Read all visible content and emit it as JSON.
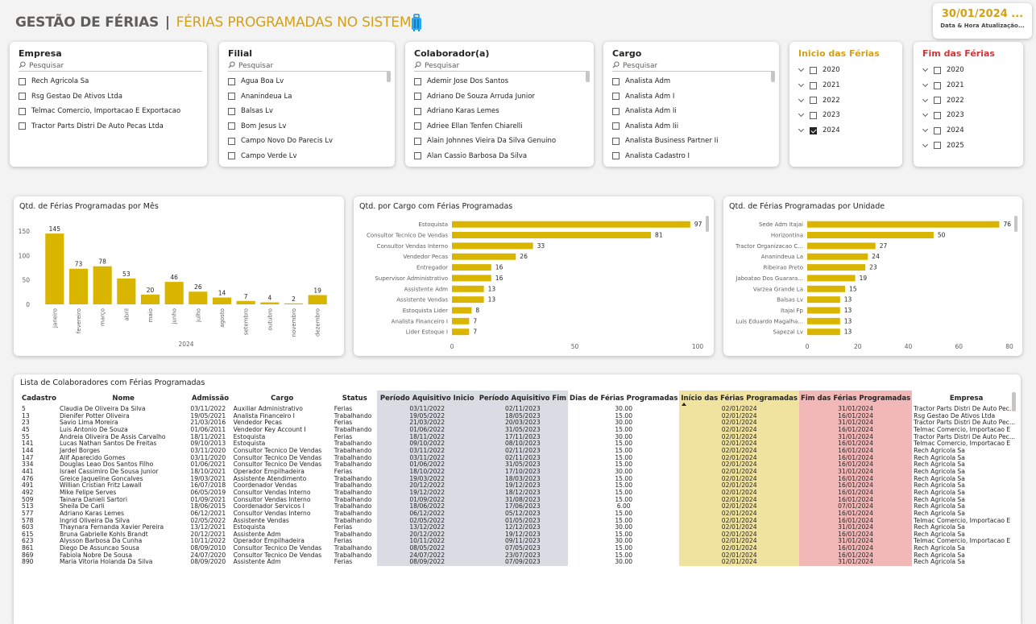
{
  "header": {
    "title_main": "GESTÃO DE FÉRIAS",
    "title_sep": "|",
    "title_sub": "FÉRIAS PROGRAMADAS NO SISTEMA",
    "date_value": "30/01/2024 ...",
    "date_label": "Data & Hora Atualização..."
  },
  "colors": {
    "accent": "#d4a017",
    "red_title": "#d13438",
    "grey_col": "#d9dde3",
    "yellow_col": "#f0e3a0",
    "red_col": "#f2b8b8"
  },
  "icons": {
    "title": "suitcase-icon",
    "search": "search-icon",
    "year_expand": "chevron-down-icon"
  },
  "slicers": {
    "empresa": {
      "title": "Empresa",
      "search": "Pesquisar",
      "items": [
        "Rech Agricola Sa",
        "Rsg Gestao De Ativos Ltda",
        "Telmac Comercio, Importacao E Exportacao",
        "Tractor Parts Distri De Auto Pecas Ltda"
      ]
    },
    "filial": {
      "title": "Filial",
      "search": "Pesquisar",
      "items": [
        "Agua Boa Lv",
        "Ananindeua La",
        "Balsas Lv",
        "Bom Jesus Lv",
        "Campo Novo Do Parecis Lv",
        "Campo Verde Lv"
      ]
    },
    "colaborador": {
      "title": "Colaborador(a)",
      "search": "Pesquisar",
      "items": [
        "Ademir Jose Dos Santos",
        "Adriano De Souza Arruda Junior",
        "Adriano Karas Lemes",
        "Adriee Ellan Tenfen Chiarelli",
        "Alain Johnnes Vieira Da Silva Genuino",
        "Alan Cassio Barbosa Da Silva"
      ]
    },
    "cargo": {
      "title": "Cargo",
      "search": "Pesquisar",
      "items": [
        "Analista Adm",
        "Analista Adm I",
        "Analista Adm Ii",
        "Analista Adm Iii",
        "Analista Business Partner Ii",
        "Analista Cadastro I"
      ]
    },
    "inicio": {
      "title": "Inicio das Férias",
      "items": [
        {
          "label": "2020",
          "checked": false
        },
        {
          "label": "2021",
          "checked": false
        },
        {
          "label": "2022",
          "checked": false
        },
        {
          "label": "2023",
          "checked": false
        },
        {
          "label": "2024",
          "checked": true
        }
      ]
    },
    "fim": {
      "title": "Fim das Férias",
      "items": [
        {
          "label": "2020",
          "checked": false
        },
        {
          "label": "2021",
          "checked": false
        },
        {
          "label": "2022",
          "checked": false
        },
        {
          "label": "2023",
          "checked": false
        },
        {
          "label": "2024",
          "checked": false
        },
        {
          "label": "2025",
          "checked": false
        }
      ]
    }
  },
  "chart_data": [
    {
      "type": "bar",
      "title": "Qtd. de Férias Programadas por Mês",
      "x_group_label": "2024",
      "categories": [
        "janeiro",
        "fevereiro",
        "março",
        "abril",
        "maio",
        "junho",
        "julho",
        "agosto",
        "setembro",
        "outubro",
        "novembro",
        "dezembro"
      ],
      "values": [
        145,
        73,
        78,
        53,
        20,
        46,
        26,
        14,
        7,
        4,
        2,
        19
      ],
      "y_ticks": [
        0,
        50,
        100,
        150
      ],
      "ylim": [
        0,
        160
      ],
      "color": "#dab500"
    },
    {
      "type": "bar",
      "orientation": "horizontal",
      "title": "Qtd. por Cargo com Férias Programadas",
      "categories": [
        "Estoquista",
        "Consultor Tecnico De Vendas",
        "Consultor Vendas Interno",
        "Vendedor Pecas",
        "Entregador",
        "Supervisor Administrativo",
        "Assistente Adm",
        "Assistente Vendas",
        "Estoquista Lider",
        "Analista Financeiro I",
        "Lider Estoque I"
      ],
      "values": [
        97,
        81,
        33,
        26,
        16,
        16,
        13,
        13,
        8,
        7,
        7
      ],
      "x_ticks": [
        0,
        50,
        100
      ],
      "xlim": [
        0,
        100
      ],
      "color": "#dab500"
    },
    {
      "type": "bar",
      "orientation": "horizontal",
      "title": "Qtd. de Férias Programadas por Unidade",
      "categories": [
        "Sede Adm Itajai",
        "Horizontina",
        "Tractor Organizacao C...",
        "Ananindeua La",
        "Ribeirao Preto",
        "Jaboatao Dos Guarara...",
        "Varzea Grande La",
        "Balsas Lv",
        "Itajai Fp",
        "Luis Eduardo Magalha...",
        "Sapezal Lv"
      ],
      "values": [
        76,
        50,
        27,
        24,
        23,
        19,
        15,
        13,
        13,
        13,
        13
      ],
      "x_ticks": [
        0,
        20,
        40,
        60,
        80
      ],
      "xlim": [
        0,
        80
      ],
      "color": "#dab500"
    }
  ],
  "table": {
    "title": "Lista de Colaboradores com Férias Programadas",
    "columns": [
      "Cadastro",
      "Nome",
      "Admissão",
      "Cargo",
      "Status",
      "Período Aquisitivo Inicio",
      "Período Aquisitivo Fim",
      "Dias de Férias Programadas",
      "Início das Férias Programadas",
      "Fim das Férias Programadas",
      "Empresa"
    ],
    "rows": [
      [
        "5",
        "Claudia De Oliveira Da Silva",
        "03/11/2022",
        "Auxiliar Administrativo",
        "Ferias",
        "03/11/2022",
        "02/11/2023",
        "30.00",
        "02/01/2024",
        "31/01/2024",
        "Tractor Parts Distri De Auto Pec..."
      ],
      [
        "13",
        "Dienifer Potter Oliveira",
        "19/05/2021",
        "Analista Financeiro I",
        "Trabalhando",
        "19/05/2022",
        "18/05/2023",
        "15.00",
        "02/01/2024",
        "16/01/2024",
        "Rsg Gestao De Ativos Ltda"
      ],
      [
        "23",
        "Savio Lima Moreira",
        "21/03/2016",
        "Vendedor Pecas",
        "Ferias",
        "21/03/2022",
        "20/03/2023",
        "30.00",
        "02/01/2024",
        "31/01/2024",
        "Tractor Parts Distri De Auto Pec..."
      ],
      [
        "45",
        "Luis Antonio De Souza",
        "01/06/2011",
        "Vendedor Key Account I",
        "Trabalhando",
        "01/06/2022",
        "31/05/2023",
        "15.00",
        "02/01/2024",
        "16/01/2024",
        "Telmac Comercio, Importacao E"
      ],
      [
        "55",
        "Andreia Oliveira De Assis Carvalho",
        "18/11/2021",
        "Estoquista",
        "Ferias",
        "18/11/2022",
        "17/11/2023",
        "30.00",
        "02/01/2024",
        "31/01/2024",
        "Tractor Parts Distri De Auto Pec..."
      ],
      [
        "141",
        "Lucas Nathan Santos De Freitas",
        "09/10/2013",
        "Estoquista",
        "Trabalhando",
        "09/10/2022",
        "08/10/2023",
        "15.00",
        "02/01/2024",
        "16/01/2024",
        "Telmac Comercio, Importacao E"
      ],
      [
        "144",
        "Jardel Borges",
        "03/11/2020",
        "Consultor Tecnico De Vendas",
        "Trabalhando",
        "03/11/2022",
        "02/11/2023",
        "15.00",
        "02/01/2024",
        "16/01/2024",
        "Rech Agricola Sa"
      ],
      [
        "147",
        "Alif Aparecido Gomes",
        "03/11/2020",
        "Consultor Tecnico De Vendas",
        "Trabalhando",
        "03/11/2022",
        "02/11/2023",
        "15.00",
        "02/01/2024",
        "16/01/2024",
        "Rech Agricola Sa"
      ],
      [
        "334",
        "Douglas Leao Dos Santos Filho",
        "01/06/2021",
        "Consultor Tecnico De Vendas",
        "Trabalhando",
        "01/06/2022",
        "31/05/2023",
        "15.00",
        "02/01/2024",
        "16/01/2024",
        "Rech Agricola Sa"
      ],
      [
        "441",
        "Israel Cassimiro De Sousa Junior",
        "18/10/2021",
        "Operador Empilhadeira",
        "Ferias",
        "18/10/2022",
        "17/10/2023",
        "30.00",
        "02/01/2024",
        "31/01/2024",
        "Rech Agricola Sa"
      ],
      [
        "476",
        "Greice Jaqueline Goncalves",
        "19/03/2021",
        "Assistente Atendimento",
        "Trabalhando",
        "19/03/2022",
        "18/03/2023",
        "15.00",
        "02/01/2024",
        "16/01/2024",
        "Rech Agricola Sa"
      ],
      [
        "491",
        "Willian Cristian Fritz Lawall",
        "16/07/2018",
        "Coordenador Vendas",
        "Trabalhando",
        "20/12/2022",
        "19/12/2023",
        "15.00",
        "02/01/2024",
        "16/01/2024",
        "Rech Agricola Sa"
      ],
      [
        "492",
        "Mike Felipe Serves",
        "06/05/2019",
        "Consultor Vendas Interno",
        "Trabalhando",
        "19/12/2022",
        "18/12/2023",
        "15.00",
        "02/01/2024",
        "16/01/2024",
        "Rech Agricola Sa"
      ],
      [
        "509",
        "Tainara Danieli Sartori",
        "01/09/2021",
        "Consultor Vendas Interno",
        "Trabalhando",
        "01/09/2022",
        "31/08/2023",
        "15.00",
        "02/01/2024",
        "16/01/2024",
        "Rech Agricola Sa"
      ],
      [
        "513",
        "Sheila De Carli",
        "18/06/2015",
        "Coordenador Servicos I",
        "Trabalhando",
        "18/06/2022",
        "17/06/2023",
        "6.00",
        "02/01/2024",
        "07/01/2024",
        "Rech Agricola Sa"
      ],
      [
        "577",
        "Adriano Karas Lemes",
        "06/12/2021",
        "Consultor Vendas Interno",
        "Trabalhando",
        "06/12/2022",
        "05/12/2023",
        "15.00",
        "02/01/2024",
        "16/01/2024",
        "Rech Agricola Sa"
      ],
      [
        "578",
        "Ingrid Oliveira Da Silva",
        "02/05/2022",
        "Assistente Vendas",
        "Trabalhando",
        "02/05/2022",
        "01/05/2023",
        "15.00",
        "02/01/2024",
        "16/01/2024",
        "Telmac Comercio, Importacao E"
      ],
      [
        "603",
        "Thaynara Fernanda Xavier Pereira",
        "13/12/2021",
        "Estoquista",
        "Ferias",
        "13/12/2022",
        "12/12/2023",
        "30.00",
        "02/01/2024",
        "31/01/2024",
        "Rech Agricola Sa"
      ],
      [
        "615",
        "Bruna Gabrielle Kohls Brandt",
        "20/12/2021",
        "Assistente Adm",
        "Trabalhando",
        "20/12/2022",
        "19/12/2023",
        "15.00",
        "02/01/2024",
        "16/01/2024",
        "Rech Agricola Sa"
      ],
      [
        "623",
        "Alysson Barbosa Da Cunha",
        "10/11/2022",
        "Operador Empilhadeira",
        "Ferias",
        "10/11/2022",
        "09/11/2023",
        "30.00",
        "02/01/2024",
        "31/01/2024",
        "Telmac Comercio, Importacao E"
      ],
      [
        "861",
        "Diego De Assuncao Sousa",
        "08/09/2010",
        "Consultor Tecnico De Vendas",
        "Trabalhando",
        "08/05/2022",
        "07/05/2023",
        "15.00",
        "02/01/2024",
        "16/01/2024",
        "Rech Agricola Sa"
      ],
      [
        "869",
        "Fabiola Nobre De Sousa",
        "24/07/2020",
        "Consultor Tecnico De Vendas",
        "Trabalhando",
        "24/07/2022",
        "23/07/2023",
        "15.00",
        "02/01/2024",
        "16/01/2024",
        "Rech Agricola Sa"
      ],
      [
        "890",
        "Maria Vitoria Holanda Da Silva",
        "08/09/2020",
        "Assistente Adm",
        "Ferias",
        "08/09/2022",
        "07/09/2023",
        "30.00",
        "02/01/2024",
        "31/01/2024",
        "Rech Agricola Sa"
      ]
    ]
  }
}
